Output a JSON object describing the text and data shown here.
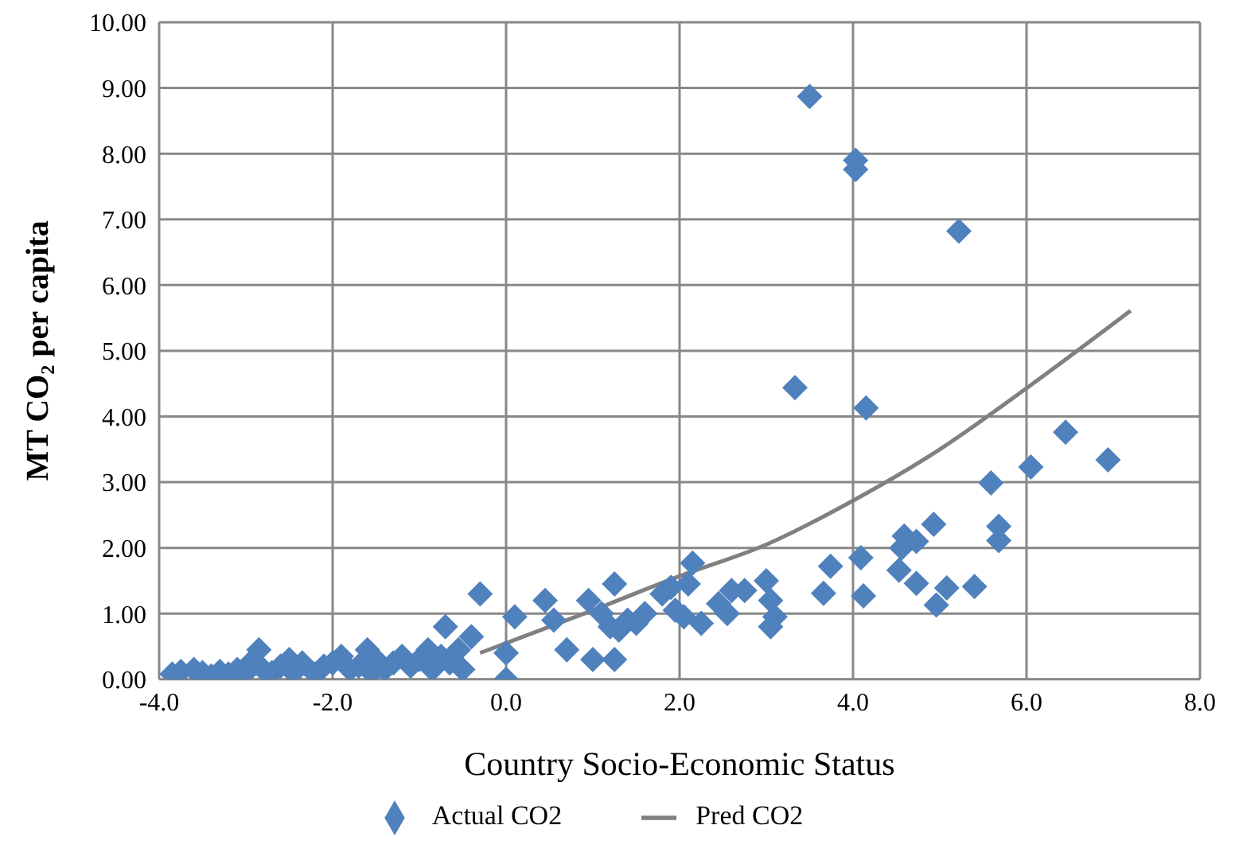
{
  "chart_data": {
    "type": "scatter",
    "xlabel": "Country Socio-Economic Status",
    "ylabel": "MT CO₂ per capita",
    "xlim": [
      -4,
      8
    ],
    "xticks": [
      {
        "value": -4,
        "label": "-4.0"
      },
      {
        "value": -2,
        "label": "-2.0"
      },
      {
        "value": 0,
        "label": "0.0"
      },
      {
        "value": 2,
        "label": "2.0"
      },
      {
        "value": 4,
        "label": "4.0"
      },
      {
        "value": 6,
        "label": "6.0"
      },
      {
        "value": 8,
        "label": "8.0"
      }
    ],
    "ylim": [
      0,
      10
    ],
    "yticks": [
      {
        "value": 0,
        "label": "0.00"
      },
      {
        "value": 1,
        "label": "1.00"
      },
      {
        "value": 2,
        "label": "2.00"
      },
      {
        "value": 3,
        "label": "3.00"
      },
      {
        "value": 4,
        "label": "4.00"
      },
      {
        "value": 5,
        "label": "5.00"
      },
      {
        "value": 6,
        "label": "6.00"
      },
      {
        "value": 7,
        "label": "7.00"
      },
      {
        "value": 8,
        "label": "8.00"
      },
      {
        "value": 9,
        "label": "9.00"
      },
      {
        "value": 10,
        "label": "10.00"
      }
    ],
    "grid": true,
    "legend": "bottom",
    "marker": "diamond",
    "series": [
      {
        "name": "Actual CO2",
        "color": "#4f81bd",
        "x": [
          -3.85,
          -3.75,
          -3.6,
          -3.5,
          -3.4,
          -3.3,
          -3.2,
          -3.1,
          -3.0,
          -2.95,
          -2.85,
          -2.8,
          -2.7,
          -2.6,
          -2.5,
          -2.45,
          -2.35,
          -2.2,
          -2.1,
          -2.0,
          -1.9,
          -1.8,
          -1.7,
          -1.6,
          -1.55,
          -1.5,
          -1.4,
          -1.3,
          -1.2,
          -1.1,
          -1.0,
          -0.9,
          -0.85,
          -0.75,
          -0.7,
          -0.65,
          -0.55,
          -0.5,
          -0.4,
          -0.3,
          0.0,
          0.0,
          0.1,
          0.45,
          0.55,
          0.7,
          0.95,
          1.0,
          1.1,
          1.2,
          1.25,
          1.25,
          1.3,
          1.4,
          1.5,
          1.6,
          1.8,
          1.9,
          1.95,
          2.05,
          2.1,
          2.15,
          2.25,
          2.45,
          2.55,
          2.6,
          2.75,
          3.0,
          3.05,
          3.05,
          3.1,
          3.33,
          3.5,
          3.66,
          3.74,
          4.03,
          4.03,
          4.09,
          4.12,
          4.15,
          4.53,
          4.56,
          4.59,
          4.73,
          4.73,
          4.93,
          4.96,
          5.08,
          5.22,
          5.4,
          5.59,
          5.68,
          5.68,
          6.05,
          6.45,
          6.94
        ],
        "values": [
          0.08,
          0.12,
          0.15,
          0.1,
          0.05,
          0.12,
          0.08,
          0.15,
          0.1,
          0.25,
          0.45,
          0.15,
          0.1,
          0.2,
          0.3,
          0.1,
          0.25,
          0.08,
          0.2,
          0.25,
          0.35,
          0.15,
          0.2,
          0.45,
          0.1,
          0.3,
          0.15,
          0.25,
          0.35,
          0.2,
          0.3,
          0.45,
          0.15,
          0.35,
          0.8,
          0.25,
          0.45,
          0.15,
          0.65,
          1.3,
          0.0,
          0.4,
          0.95,
          1.2,
          0.9,
          0.45,
          1.2,
          0.3,
          1.0,
          0.8,
          1.45,
          0.3,
          0.75,
          0.9,
          0.85,
          1.0,
          1.3,
          1.4,
          1.05,
          0.95,
          1.45,
          1.77,
          0.85,
          1.15,
          1.0,
          1.35,
          1.35,
          1.5,
          1.2,
          0.8,
          0.95,
          4.44,
          8.87,
          1.31,
          1.72,
          7.9,
          7.76,
          1.85,
          1.27,
          4.13,
          1.66,
          2.0,
          2.18,
          2.1,
          1.46,
          2.36,
          1.13,
          1.39,
          6.82,
          1.41,
          2.99,
          2.33,
          2.11,
          3.23,
          3.76,
          3.34
        ]
      },
      {
        "name": "Pred CO2",
        "type": "line",
        "color": "#808080",
        "marker": "none",
        "x": [
          -0.3,
          0.0,
          1.0,
          2.0,
          3.0,
          4.0,
          5.0,
          6.0,
          7.2
        ],
        "values": [
          0.4,
          0.55,
          1.05,
          1.57,
          2.05,
          2.72,
          3.5,
          4.43,
          5.61
        ]
      }
    ]
  }
}
